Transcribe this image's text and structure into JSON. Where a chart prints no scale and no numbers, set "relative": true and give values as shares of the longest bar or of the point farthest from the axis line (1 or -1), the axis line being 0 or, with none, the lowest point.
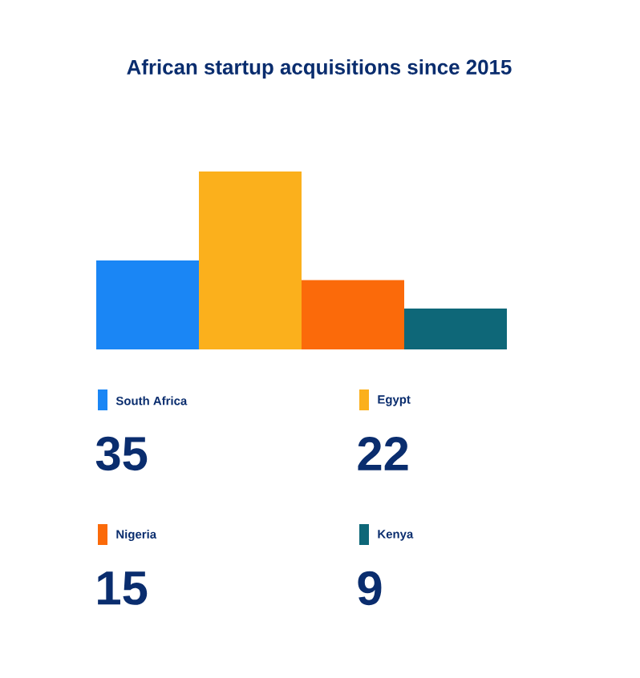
{
  "chart_data": [
    {
      "type": "bar",
      "title": "African startup acquisitions since 2015",
      "relative": true,
      "categories": [
        null,
        null,
        null,
        null
      ],
      "values": [
        0.5,
        1,
        0.39,
        0.23
      ],
      "colors": [
        "#1a86f5",
        "#fbb01c",
        "#fb6a0a",
        "#0e6778"
      ]
    },
    {
      "type": "other",
      "categories": [
        "South Africa",
        "Egypt",
        "Nigeria",
        "Kenya"
      ],
      "values": [
        35,
        22,
        15,
        9
      ],
      "data_labels": true,
      "colors": [
        "#1a86f5",
        "#fbb01c",
        "#fb6a0a",
        "#0e6778"
      ]
    }
  ]
}
